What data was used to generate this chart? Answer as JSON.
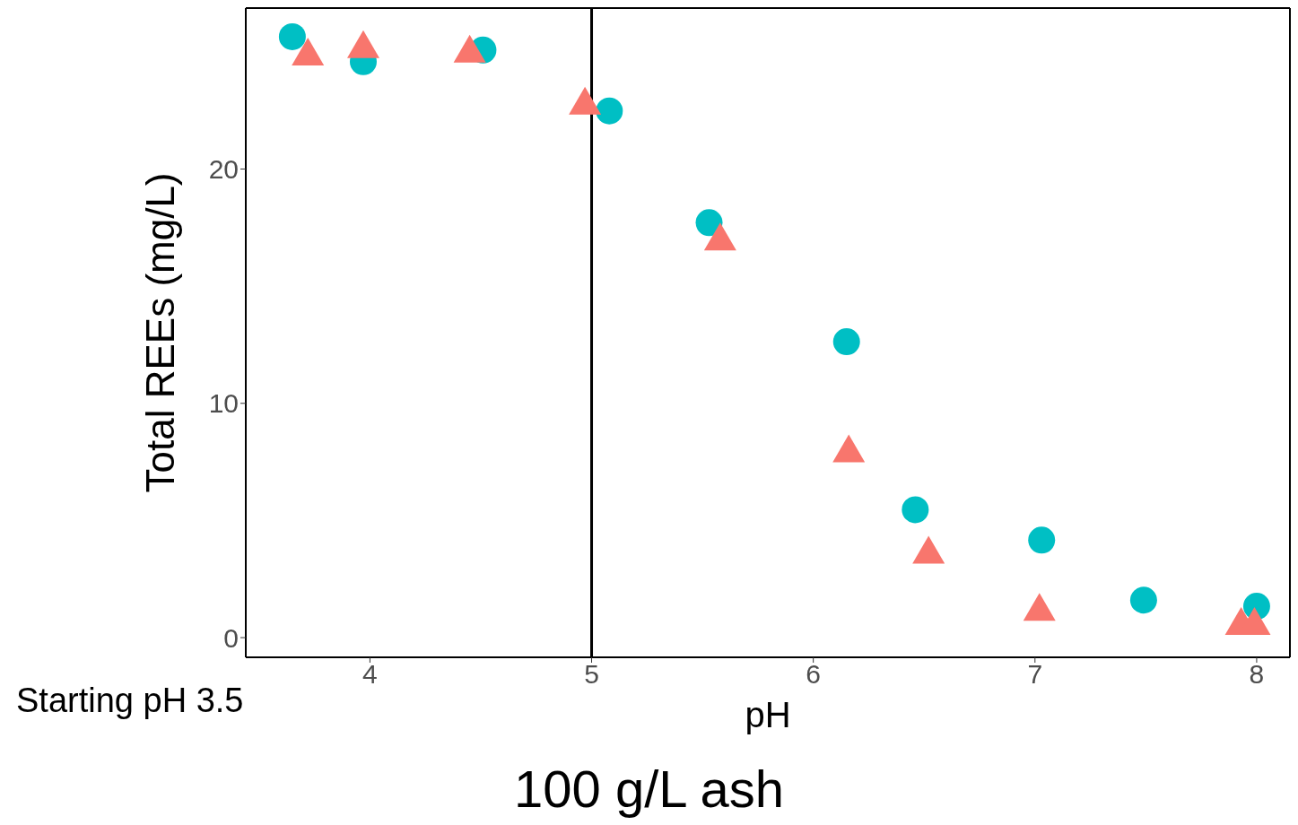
{
  "chart_data": {
    "type": "scatter",
    "title": "100 g/L ash",
    "xlabel": "pH",
    "ylabel": "Total REEs (mg/L)",
    "annotations": [
      "Starting pH 3.5"
    ],
    "xlim": [
      3.44,
      8.15
    ],
    "xticks": [
      4,
      5,
      6,
      7,
      8
    ],
    "ylim": [
      -0.84,
      26.87
    ],
    "yticks": [
      0,
      10,
      20
    ],
    "legend": false,
    "ref_lines": [
      {
        "axis": "x",
        "value": 5,
        "color": "#000000"
      }
    ],
    "series": [
      {
        "color": "#00bfc4",
        "marker": "circle",
        "x": [
          3.65,
          3.97,
          4.51,
          5.08,
          5.53,
          6.15,
          6.46,
          7.03,
          7.49,
          8.0
        ],
        "values": [
          25.65,
          24.58,
          25.08,
          22.48,
          17.71,
          12.63,
          5.46,
          4.16,
          1.6,
          1.34
        ]
      },
      {
        "color": "#f8766d",
        "marker": "triangle",
        "x": [
          3.72,
          3.97,
          4.45,
          4.97,
          5.58,
          6.16,
          6.52,
          7.02,
          7.93,
          7.99
        ],
        "values": [
          24.92,
          25.23,
          25.04,
          22.82,
          17.02,
          7.98,
          3.66,
          1.22,
          0.61,
          0.61
        ]
      }
    ]
  }
}
